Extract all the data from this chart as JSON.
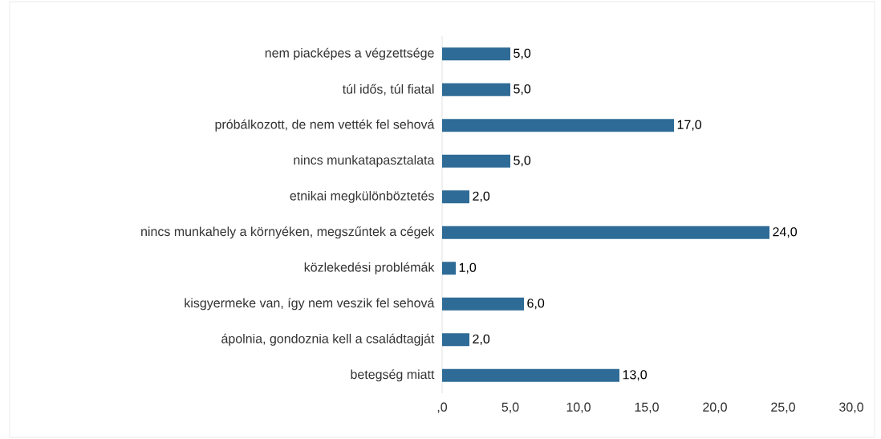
{
  "chart_data": {
    "type": "bar",
    "orientation": "horizontal",
    "categories": [
      "nem piacképes a végzettsége",
      "túl idős, túl fiatal",
      "próbálkozott, de nem vették fel sehová",
      "nincs munkatapasztalata",
      "etnikai megkülönböztetés",
      "nincs munkahely a környéken, megszűntek a cégek",
      "közlekedési problémák",
      "kisgyermeke van, így nem veszik fel sehová",
      "ápolnia, gondoznia kell a családtagját",
      "betegség miatt"
    ],
    "values": [
      5,
      5,
      17,
      5,
      2,
      24,
      1,
      6,
      2,
      13
    ],
    "value_labels": [
      "5,0",
      "5,0",
      "17,0",
      "5,0",
      "2,0",
      "24,0",
      "1,0",
      "6,0",
      "2,0",
      "13,0"
    ],
    "color": "#2e6b96",
    "xlim": [
      0,
      30
    ],
    "xticks": [
      {
        "value": 0,
        "label": ",0"
      },
      {
        "value": 5,
        "label": "5,0"
      },
      {
        "value": 10,
        "label": "10,0"
      },
      {
        "value": 15,
        "label": "15,0"
      },
      {
        "value": 20,
        "label": "20,0"
      },
      {
        "value": 25,
        "label": "25,0"
      },
      {
        "value": 30,
        "label": "30,0"
      }
    ]
  }
}
